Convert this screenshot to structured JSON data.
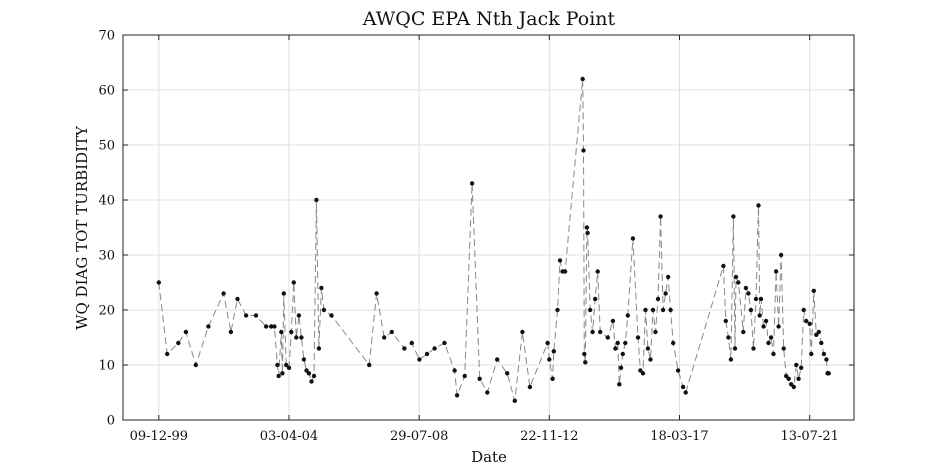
{
  "chart_data": {
    "type": "line",
    "title": "AWQC EPA Nth Jack Point",
    "xlabel": "Date",
    "ylabel": "WQ DIAG TOT TURBIDITY",
    "xlim": [
      "1998-10-01",
      "2023-01-01"
    ],
    "ylim": [
      0,
      70
    ],
    "y_ticks": [
      0,
      10,
      20,
      30,
      40,
      50,
      60,
      70
    ],
    "x_ticks": [
      {
        "label": "09-12-99",
        "date": "1999-12-09"
      },
      {
        "label": "03-04-04",
        "date": "2004-04-03"
      },
      {
        "label": "29-07-08",
        "date": "2008-07-29"
      },
      {
        "label": "22-11-12",
        "date": "2012-11-22"
      },
      {
        "label": "18-03-17",
        "date": "2017-03-18"
      },
      {
        "label": "13-07-21",
        "date": "2021-07-13"
      }
    ],
    "grid": true,
    "series": [
      {
        "marker": "dot",
        "line_style": "dashed",
        "points": [
          [
            "1999-12-09",
            25
          ],
          [
            "2000-03-20",
            12
          ],
          [
            "2000-08-01",
            14
          ],
          [
            "2000-11-01",
            16
          ],
          [
            "2001-03-01",
            10
          ],
          [
            "2001-08-01",
            17
          ],
          [
            "2002-02-01",
            23
          ],
          [
            "2002-05-01",
            16
          ],
          [
            "2002-07-20",
            22
          ],
          [
            "2002-11-01",
            19
          ],
          [
            "2003-03-01",
            19
          ],
          [
            "2003-07-01",
            17
          ],
          [
            "2003-09-01",
            17
          ],
          [
            "2003-10-10",
            17
          ],
          [
            "2003-11-15",
            10
          ],
          [
            "2003-12-01",
            8
          ],
          [
            "2004-01-01",
            16
          ],
          [
            "2004-01-15",
            8.5
          ],
          [
            "2004-02-01",
            23
          ],
          [
            "2004-03-01",
            10
          ],
          [
            "2004-04-03",
            9.5
          ],
          [
            "2004-05-01",
            16
          ],
          [
            "2004-06-01",
            25
          ],
          [
            "2004-07-01",
            15
          ],
          [
            "2004-08-01",
            19
          ],
          [
            "2004-09-01",
            15
          ],
          [
            "2004-10-01",
            11
          ],
          [
            "2004-11-01",
            9
          ],
          [
            "2004-12-01",
            8.5
          ],
          [
            "2005-01-01",
            7
          ],
          [
            "2005-02-01",
            8
          ],
          [
            "2005-03-01",
            40
          ],
          [
            "2005-04-01",
            13
          ],
          [
            "2005-05-01",
            24
          ],
          [
            "2005-06-01",
            20
          ],
          [
            "2005-09-01",
            19
          ],
          [
            "2006-12-01",
            10
          ],
          [
            "2007-03-01",
            23
          ],
          [
            "2007-06-01",
            15
          ],
          [
            "2007-09-01",
            16
          ],
          [
            "2008-02-01",
            13
          ],
          [
            "2008-05-01",
            14
          ],
          [
            "2008-08-01",
            11
          ],
          [
            "2008-11-01",
            12
          ],
          [
            "2009-02-01",
            13
          ],
          [
            "2009-06-01",
            14
          ],
          [
            "2009-10-01",
            9
          ],
          [
            "2009-11-01",
            4.5
          ],
          [
            "2010-02-01",
            8
          ],
          [
            "2010-05-01",
            43
          ],
          [
            "2010-08-01",
            7.5
          ],
          [
            "2010-11-01",
            5
          ],
          [
            "2011-03-01",
            11
          ],
          [
            "2011-07-01",
            8.5
          ],
          [
            "2011-10-01",
            3.5
          ],
          [
            "2012-01-01",
            16
          ],
          [
            "2012-04-01",
            6
          ],
          [
            "2012-11-01",
            14
          ],
          [
            "2012-11-22",
            11
          ],
          [
            "2013-01-01",
            7.5
          ],
          [
            "2013-01-15",
            12.5
          ],
          [
            "2013-03-01",
            20
          ],
          [
            "2013-04-01",
            29
          ],
          [
            "2013-05-01",
            27
          ],
          [
            "2013-06-01",
            27
          ],
          [
            "2014-01-01",
            62
          ],
          [
            "2014-01-10",
            49
          ],
          [
            "2014-01-20",
            12
          ],
          [
            "2014-02-01",
            10.5
          ],
          [
            "2014-02-20",
            35
          ],
          [
            "2014-03-01",
            34
          ],
          [
            "2014-04-01",
            20
          ],
          [
            "2014-05-01",
            16
          ],
          [
            "2014-06-01",
            22
          ],
          [
            "2014-07-01",
            27
          ],
          [
            "2014-08-01",
            16
          ],
          [
            "2014-11-01",
            15
          ],
          [
            "2015-01-01",
            18
          ],
          [
            "2015-02-01",
            13
          ],
          [
            "2015-03-01",
            14
          ],
          [
            "2015-03-20",
            6.5
          ],
          [
            "2015-04-10",
            9.5
          ],
          [
            "2015-05-01",
            12
          ],
          [
            "2015-06-01",
            14
          ],
          [
            "2015-07-01",
            19
          ],
          [
            "2015-09-01",
            33
          ],
          [
            "2015-11-01",
            15
          ],
          [
            "2015-12-01",
            9
          ],
          [
            "2016-01-01",
            8.5
          ],
          [
            "2016-02-01",
            20
          ],
          [
            "2016-03-01",
            13
          ],
          [
            "2016-04-01",
            11
          ],
          [
            "2016-05-01",
            20
          ],
          [
            "2016-06-01",
            16
          ],
          [
            "2016-07-01",
            22
          ],
          [
            "2016-08-01",
            37
          ],
          [
            "2016-09-01",
            20
          ],
          [
            "2016-10-01",
            23
          ],
          [
            "2016-11-01",
            26
          ],
          [
            "2016-12-01",
            20
          ],
          [
            "2017-01-01",
            14
          ],
          [
            "2017-03-01",
            9
          ],
          [
            "2017-05-01",
            6
          ],
          [
            "2017-06-01",
            5
          ],
          [
            "2018-09-01",
            28
          ],
          [
            "2018-10-01",
            18
          ],
          [
            "2018-11-01",
            15
          ],
          [
            "2018-12-01",
            11
          ],
          [
            "2019-01-01",
            37
          ],
          [
            "2019-01-20",
            13
          ],
          [
            "2019-02-01",
            26
          ],
          [
            "2019-03-01",
            25
          ],
          [
            "2019-05-01",
            16
          ],
          [
            "2019-06-01",
            24
          ],
          [
            "2019-07-01",
            23
          ],
          [
            "2019-08-01",
            20
          ],
          [
            "2019-09-01",
            13
          ],
          [
            "2019-10-01",
            22
          ],
          [
            "2019-11-01",
            39
          ],
          [
            "2019-11-15",
            19
          ],
          [
            "2019-12-01",
            22
          ],
          [
            "2020-01-01",
            17
          ],
          [
            "2020-02-01",
            18
          ],
          [
            "2020-03-01",
            14
          ],
          [
            "2020-04-01",
            15
          ],
          [
            "2020-05-01",
            12
          ],
          [
            "2020-06-01",
            27
          ],
          [
            "2020-07-01",
            17
          ],
          [
            "2020-08-01",
            30
          ],
          [
            "2020-09-01",
            13
          ],
          [
            "2020-10-01",
            8
          ],
          [
            "2020-11-01",
            7.5
          ],
          [
            "2020-12-01",
            6.5
          ],
          [
            "2021-01-01",
            6
          ],
          [
            "2021-02-01",
            10
          ],
          [
            "2021-03-01",
            7.5
          ],
          [
            "2021-04-01",
            9.5
          ],
          [
            "2021-05-01",
            20
          ],
          [
            "2021-06-01",
            18
          ],
          [
            "2021-07-13",
            17.5
          ],
          [
            "2021-08-01",
            12
          ],
          [
            "2021-09-01",
            23.5
          ],
          [
            "2021-10-01",
            15.5
          ],
          [
            "2021-11-01",
            16
          ],
          [
            "2021-12-01",
            14
          ],
          [
            "2022-01-01",
            12
          ],
          [
            "2022-02-01",
            11
          ],
          [
            "2022-02-15",
            8.5
          ],
          [
            "2022-03-01",
            8.5
          ]
        ]
      }
    ]
  }
}
